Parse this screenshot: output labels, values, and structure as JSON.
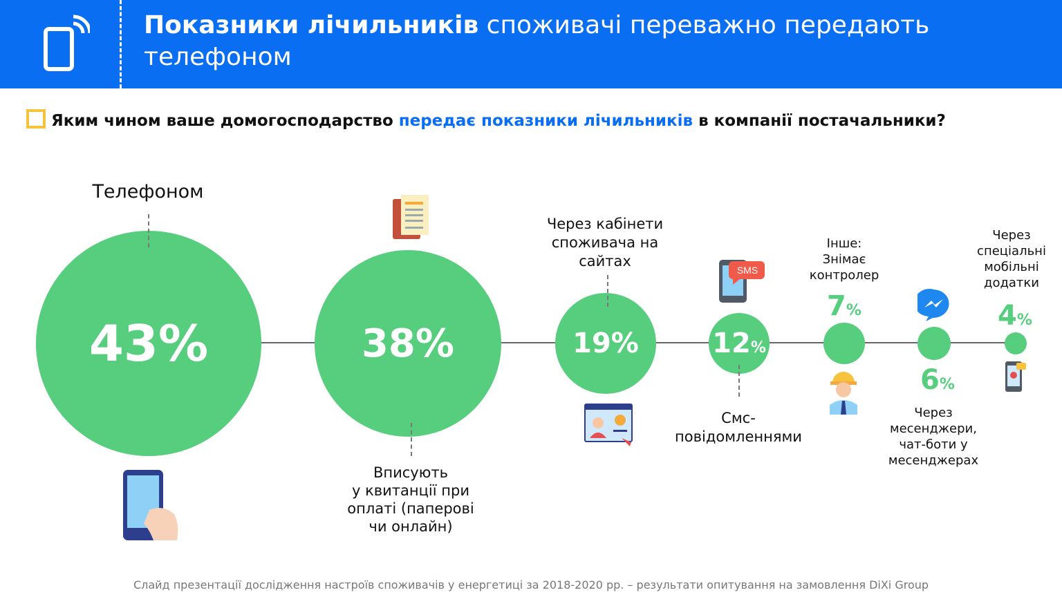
{
  "header": {
    "title_bold": "Показники лічильників",
    "title_rest": " споживачі переважно передають телефоном",
    "icon": "phone-signal-icon",
    "bg_color": "#0a6ef2"
  },
  "question": {
    "part1": "Яким чином ваше домогосподарство ",
    "highlight": "передає показники лічильників",
    "part2": " в компанії постачальники?"
  },
  "chart_data": {
    "type": "bubble",
    "categories": [
      "Телефоном",
      "Вписують у квитанції при оплаті (паперові чи онлайн)",
      "Через кабінети споживача на сайтах",
      "Смс-повідомленнями",
      "Інше: Знімає контролер",
      "Через месенджери, чат-боти у месенджерах",
      "Через спеціальні мобільні додатки"
    ],
    "values": [
      43,
      38,
      19,
      12,
      7,
      6,
      4
    ],
    "unit": "%",
    "color": "#57cd7e"
  },
  "labels": {
    "phone": "Телефоном",
    "receipt": [
      "Вписують",
      "у квитанції при",
      "оплаті (паперові",
      "чи онлайн)"
    ],
    "cabinet": [
      "Через кабінети",
      "споживача на",
      "сайтах"
    ],
    "sms": [
      "Смс-",
      "повідомленнями"
    ],
    "other": [
      "Інше:",
      "Знімає",
      "контролер"
    ],
    "messenger": [
      "Через",
      "месенджери,",
      "чат-боти у",
      "месенджерах"
    ],
    "apps": [
      "Через",
      "спеціальні",
      "мобільні",
      "додатки"
    ]
  },
  "icons": [
    "hand-phone-icon",
    "receipt-icon",
    "web-cabinet-icon",
    "sms-phone-icon",
    "controller-worker-icon",
    "messenger-icon",
    "mobile-app-icon"
  ],
  "sms_badge": "SMS",
  "footer": "Слайд презентації дослідження настроїв споживачів у енергетиці за 2018-2020 рр. – результати опитування на замовлення DiXi Group"
}
